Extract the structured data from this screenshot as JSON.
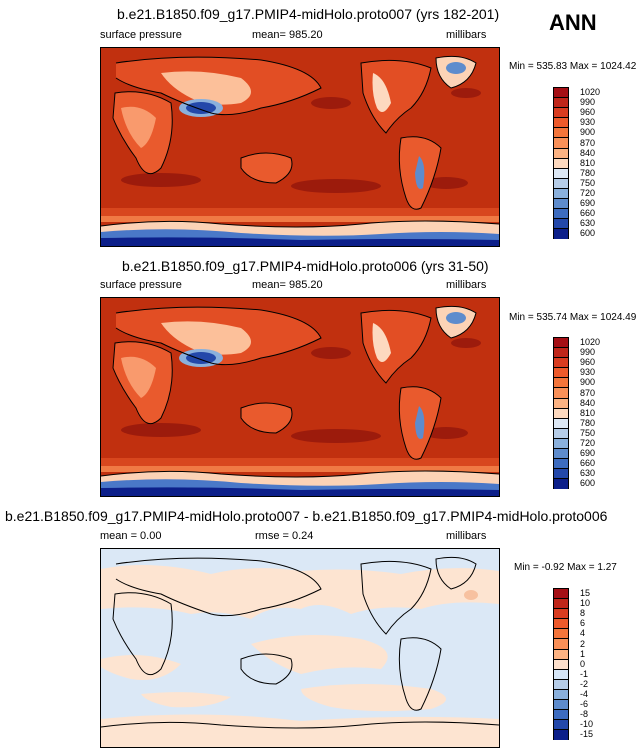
{
  "season": "ANN",
  "panels": [
    {
      "title": "b.e21.B1850.f09_g17.PMIP4-midHolo.proto007 (yrs 182-201)",
      "left_label": "surface pressure",
      "center_label": "mean= 985.20",
      "units": "millibars",
      "minmax": "Min = 535.83 Max = 1024.42",
      "colorbar_labels": [
        "1020",
        "990",
        "960",
        "930",
        "900",
        "870",
        "840",
        "810",
        "780",
        "750",
        "720",
        "690",
        "660",
        "630",
        "600"
      ],
      "colorbar_colors": [
        "#a50f15",
        "#c0261a",
        "#d93c20",
        "#ee5a2b",
        "#f4753b",
        "#f99058",
        "#fcb383",
        "#fdd9bf",
        "#dde8f5",
        "#b6cde8",
        "#8ab0dc",
        "#5e8ccd",
        "#3d6cc0",
        "#2348aa",
        "#0c1f8a"
      ]
    },
    {
      "title": "b.e21.B1850.f09_g17.PMIP4-midHolo.proto006 (yrs 31-50)",
      "left_label": "surface pressure",
      "center_label": "mean= 985.20",
      "units": "millibars",
      "minmax": "Min = 535.74 Max = 1024.49",
      "colorbar_labels": [
        "1020",
        "990",
        "960",
        "930",
        "900",
        "870",
        "840",
        "810",
        "780",
        "750",
        "720",
        "690",
        "660",
        "630",
        "600"
      ],
      "colorbar_colors": [
        "#a50f15",
        "#c0261a",
        "#d93c20",
        "#ee5a2b",
        "#f4753b",
        "#f99058",
        "#fcb383",
        "#fdd9bf",
        "#dde8f5",
        "#b6cde8",
        "#8ab0dc",
        "#5e8ccd",
        "#3d6cc0",
        "#2348aa",
        "#0c1f8a"
      ]
    },
    {
      "title": "b.e21.B1850.f09_g17.PMIP4-midHolo.proto007 - b.e21.B1850.f09_g17.PMIP4-midHolo.proto006",
      "left_label": "mean =   0.00",
      "center_label": "rmse =   0.24",
      "units": "millibars",
      "minmax": "Min = -0.92 Max =  1.27",
      "colorbar_labels": [
        "15",
        "10",
        "8",
        "6",
        "4",
        "2",
        "1",
        "0",
        "-1",
        "-2",
        "-4",
        "-6",
        "-8",
        "-10",
        "-15"
      ],
      "colorbar_colors": [
        "#a50f15",
        "#c0261a",
        "#d93c20",
        "#ee5a2b",
        "#f4753b",
        "#f99058",
        "#fcb383",
        "#fde0cc",
        "#d6e6f7",
        "#b6cde8",
        "#8ab0dc",
        "#5e8ccd",
        "#3d6cc0",
        "#2348aa",
        "#0c1f8a"
      ]
    }
  ]
}
